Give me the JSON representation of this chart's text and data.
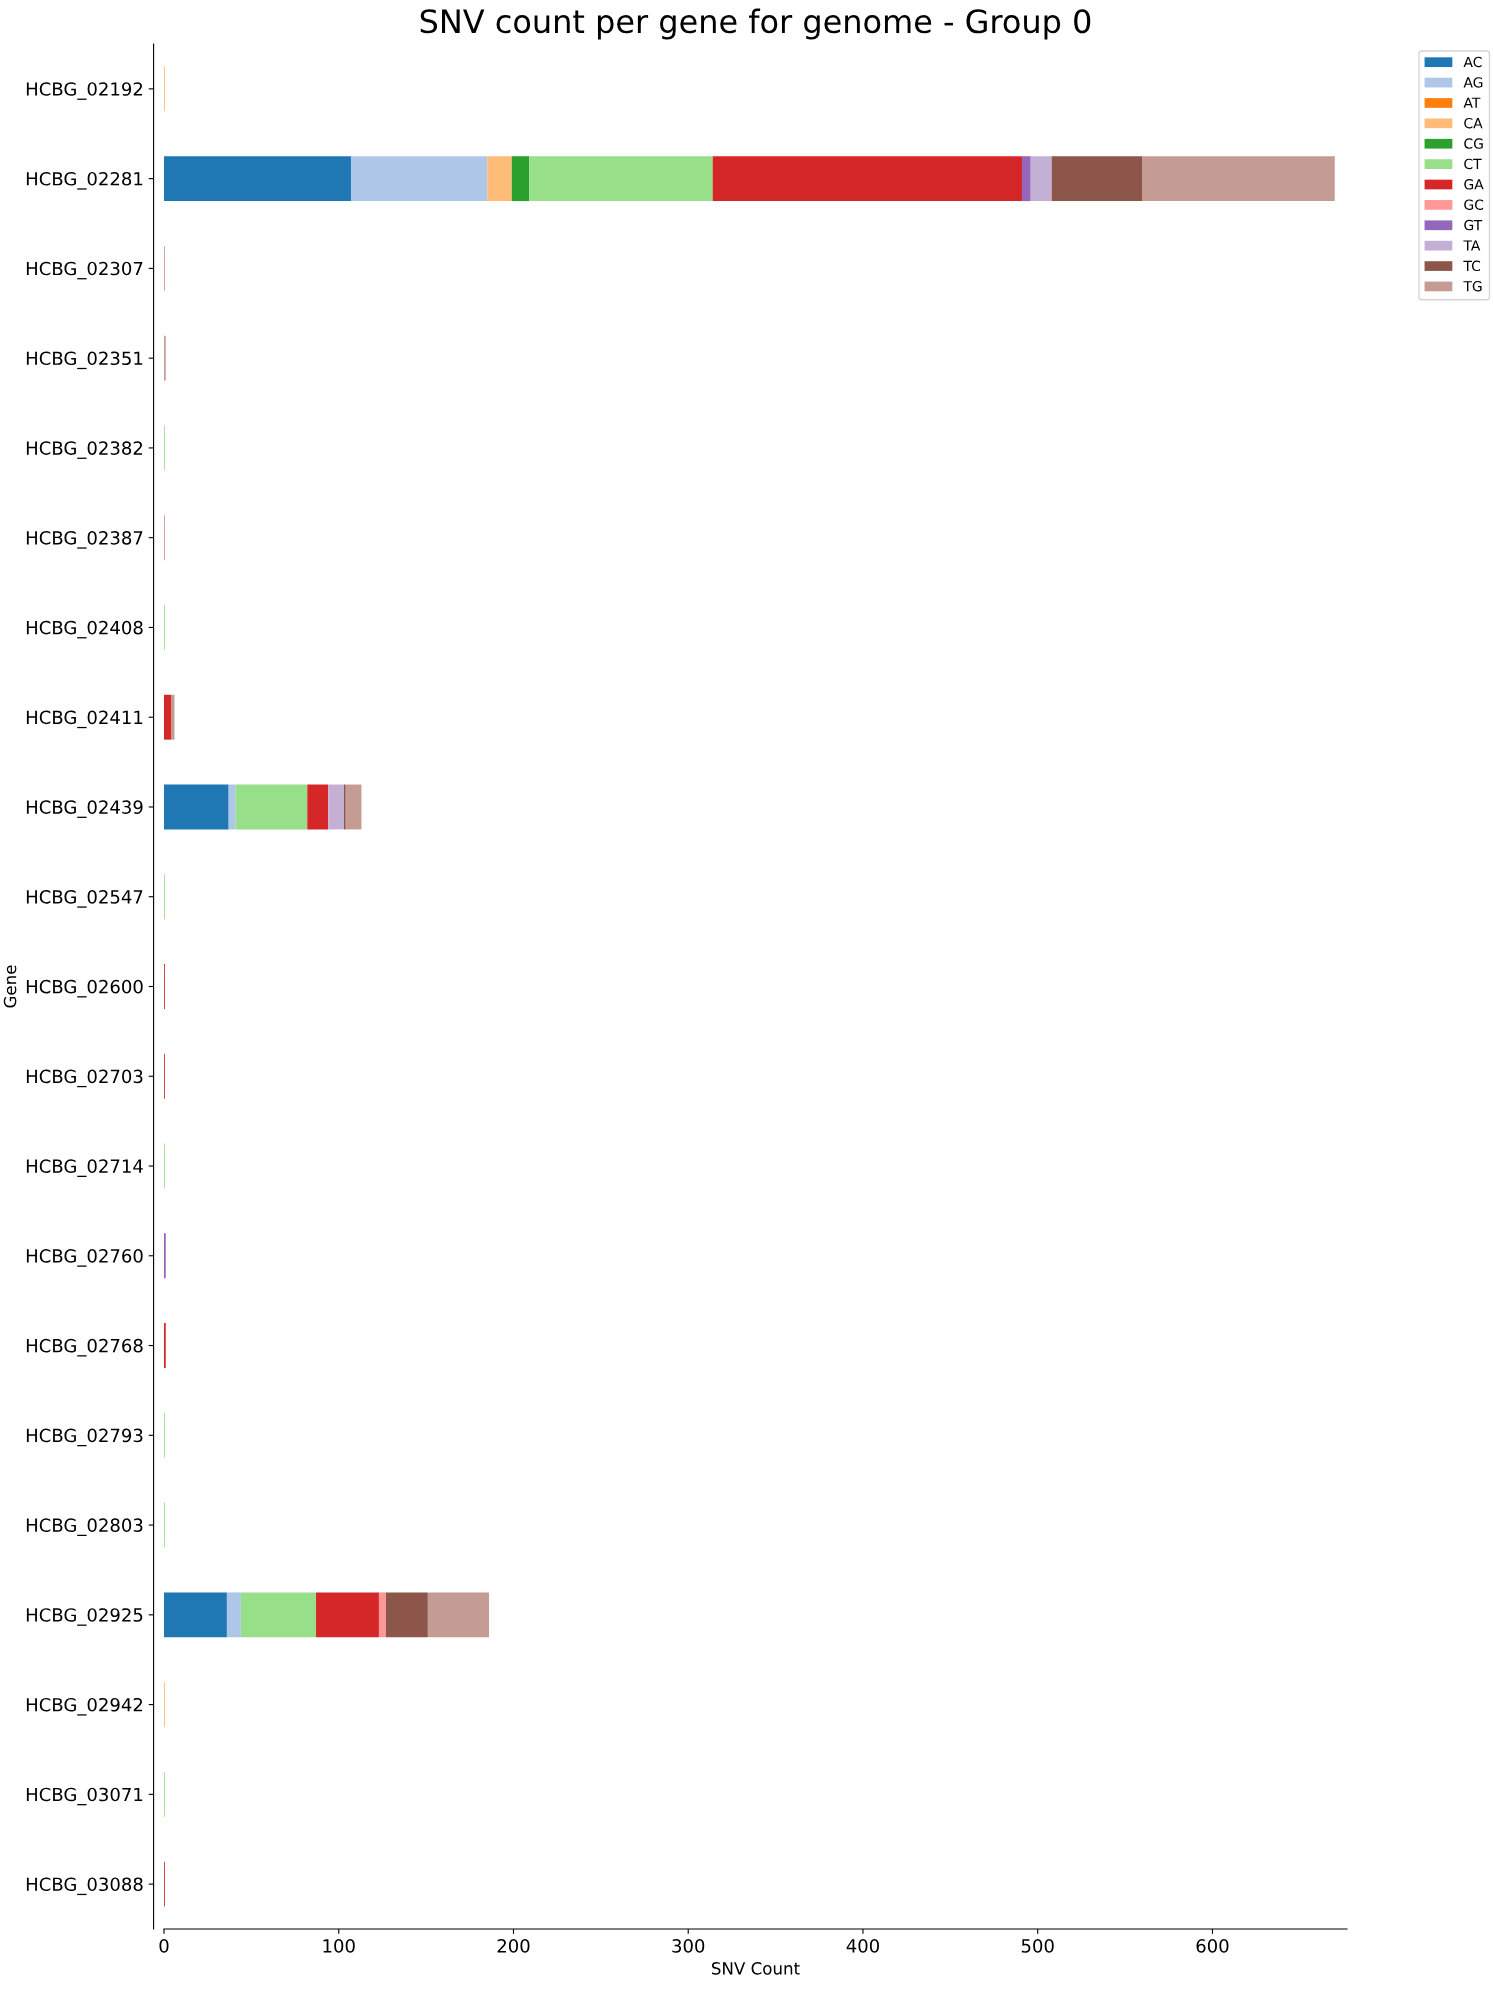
{
  "chart_data": {
    "type": "bar",
    "orientation": "horizontal",
    "stacked": true,
    "title": "SNV count per gene for genome - Group 0",
    "xlabel": "SNV Count",
    "ylabel": "Gene",
    "categories": [
      "HCBG_02192",
      "HCBG_02281",
      "HCBG_02307",
      "HCBG_02351",
      "HCBG_02382",
      "HCBG_02387",
      "HCBG_02408",
      "HCBG_02411",
      "HCBG_02439",
      "HCBG_02547",
      "HCBG_02600",
      "HCBG_02703",
      "HCBG_02714",
      "HCBG_02760",
      "HCBG_02768",
      "HCBG_02793",
      "HCBG_02803",
      "HCBG_02925",
      "HCBG_02942",
      "HCBG_03071",
      "HCBG_03088"
    ],
    "xlim": [
      0,
      677
    ],
    "xticks": [
      0,
      100,
      200,
      300,
      400,
      500,
      600
    ],
    "legend": "top right",
    "series": [
      {
        "name": "AC",
        "color": "#1f77b4",
        "values": [
          0,
          107,
          0,
          0,
          0,
          0,
          0,
          0,
          37,
          0,
          0,
          0,
          0,
          0,
          0,
          0,
          0,
          36,
          0,
          0,
          0
        ]
      },
      {
        "name": "AG",
        "color": "#aec7e8",
        "values": [
          0,
          78,
          0,
          0,
          0,
          0,
          0,
          0,
          4,
          0,
          0,
          0,
          0,
          0,
          0,
          0,
          0,
          8,
          0,
          0,
          0
        ]
      },
      {
        "name": "AT",
        "color": "#ff7f0e",
        "values": [
          0,
          0,
          0,
          0,
          0,
          0,
          0,
          0,
          0,
          0,
          0,
          0,
          0,
          0,
          0,
          0,
          0,
          0,
          0,
          0,
          0
        ]
      },
      {
        "name": "CA",
        "color": "#ffbb78",
        "values": [
          0.5,
          14,
          0,
          0,
          0,
          0,
          0,
          0,
          0,
          0,
          0,
          0,
          0,
          0,
          0,
          0,
          0,
          0,
          0.5,
          0,
          0
        ]
      },
      {
        "name": "CG",
        "color": "#2ca02c",
        "values": [
          0,
          10,
          0,
          0,
          0,
          0,
          0,
          0,
          0,
          0,
          0,
          0,
          0,
          0,
          0,
          0,
          0,
          0,
          0,
          0,
          0
        ]
      },
      {
        "name": "CT",
        "color": "#98df8a",
        "values": [
          0,
          105,
          0,
          0,
          0.5,
          0,
          0.5,
          0,
          41,
          0.5,
          0,
          0,
          0.5,
          0,
          0,
          0.5,
          0.5,
          43,
          0,
          0.5,
          0
        ]
      },
      {
        "name": "GA",
        "color": "#d62728",
        "values": [
          0,
          177,
          0,
          0,
          0,
          0,
          0,
          4,
          12,
          0,
          0.5,
          0.5,
          0,
          0,
          1,
          0,
          0,
          36,
          0,
          0,
          0.5
        ]
      },
      {
        "name": "GC",
        "color": "#ff9896",
        "values": [
          0,
          0,
          0,
          0,
          0,
          0,
          0,
          0,
          0,
          0,
          0,
          0,
          0,
          0,
          0,
          0,
          0,
          4,
          0,
          0,
          0
        ]
      },
      {
        "name": "GT",
        "color": "#9467bd",
        "values": [
          0,
          5,
          0,
          0,
          0,
          0,
          0,
          0,
          0,
          0,
          0,
          0,
          0,
          1,
          0,
          0,
          0,
          0,
          0,
          0,
          0
        ]
      },
      {
        "name": "TA",
        "color": "#c5b0d5",
        "values": [
          0,
          12,
          0,
          0,
          0,
          0,
          0,
          0,
          9,
          0,
          0,
          0,
          0,
          0,
          0,
          0,
          0,
          0,
          0,
          0,
          0
        ]
      },
      {
        "name": "TC",
        "color": "#8c564b",
        "values": [
          0,
          52,
          0,
          0,
          0,
          0,
          0,
          0,
          1,
          0,
          0,
          0,
          0,
          0,
          0,
          0,
          0,
          24,
          0,
          0,
          0
        ]
      },
      {
        "name": "TG",
        "color": "#c49c94",
        "values": [
          0,
          110,
          0.5,
          1,
          0,
          0.5,
          0,
          2,
          9,
          0,
          0,
          0,
          0,
          0,
          0,
          0,
          0,
          35,
          0,
          0,
          0
        ]
      }
    ]
  }
}
